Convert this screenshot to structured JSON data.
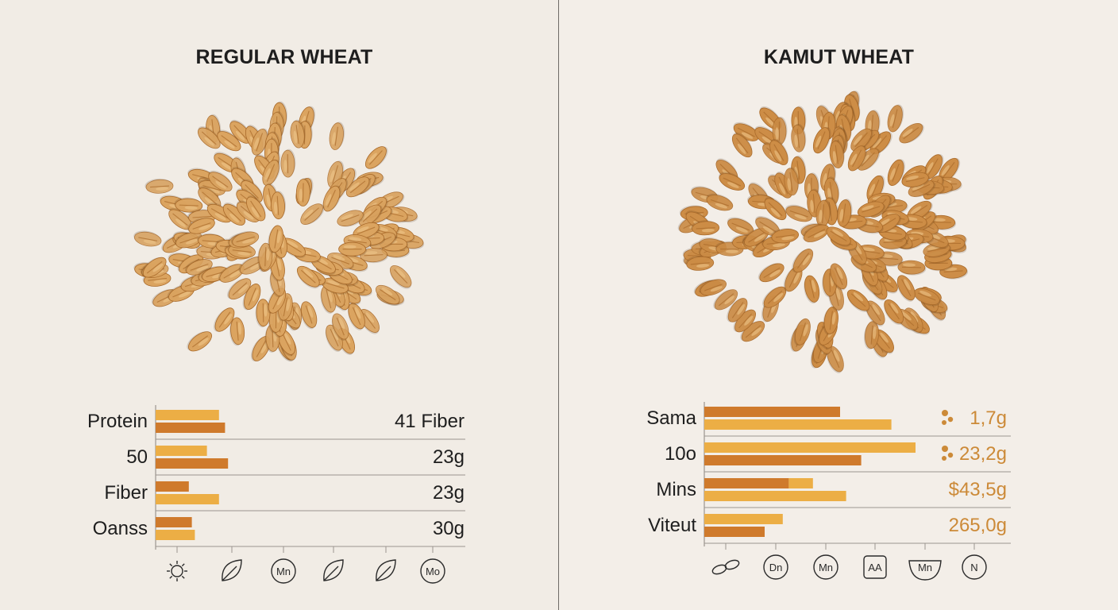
{
  "colors": {
    "bar_light": "#ecae45",
    "bar_dark": "#cf7a2c",
    "kamut_value_color": "#cc8a38",
    "text": "#1e1e1e",
    "rule": "#9b958f",
    "grain_fill": "#d59a52",
    "grain_dark": "#a96a2a"
  },
  "left": {
    "title": "REGULAR WHEAT",
    "chart_data": {
      "type": "bar",
      "title": "REGULAR WHEAT",
      "categories": [
        "Protein",
        "50",
        "Fiber",
        "Oanss"
      ],
      "value_labels": [
        "41 Fiber",
        "23g",
        "23g",
        "30g"
      ],
      "series": [
        {
          "values": [
            0.21,
            0.17,
            0.11,
            0.12
          ]
        },
        {
          "values": [
            0.23,
            0.24,
            0.21,
            0.13
          ]
        }
      ],
      "xlim": [
        0,
        1
      ],
      "axis_icons": [
        "sun-gear-icon",
        "leaves-icon",
        "mn-circle-icon",
        "leaf-icon",
        "carrot-icon",
        "mo-circle-icon"
      ],
      "axis_icon_text": [
        "",
        "",
        "Mn",
        "",
        "",
        "Mo"
      ]
    }
  },
  "right": {
    "title": "KAMUT WHEAT",
    "chart_data": {
      "type": "bar",
      "title": "KAMUT WHEAT",
      "categories": [
        "Sama",
        "10o",
        "Mins",
        "Viteut"
      ],
      "value_labels": [
        "1,7g",
        "23,2g",
        "$43,5g",
        "265,0g"
      ],
      "series": [
        {
          "values": [
            0.45,
            0.7,
            0.28,
            0.26
          ]
        },
        {
          "values": [
            0.62,
            0.52,
            0.47,
            0.2
          ]
        }
      ],
      "overlay_second_bar": [
        0,
        0,
        0.36,
        0
      ],
      "xlim": [
        0,
        1
      ],
      "axis_icons": [
        "chain-icon",
        "dn-circle-icon",
        "mn-clock-icon",
        "aa-jar-icon",
        "mn-bowl-icon",
        "n-circle-icon"
      ],
      "axis_icon_text": [
        "",
        "Dn",
        "Mn",
        "AA",
        "Mn",
        "N"
      ]
    }
  }
}
